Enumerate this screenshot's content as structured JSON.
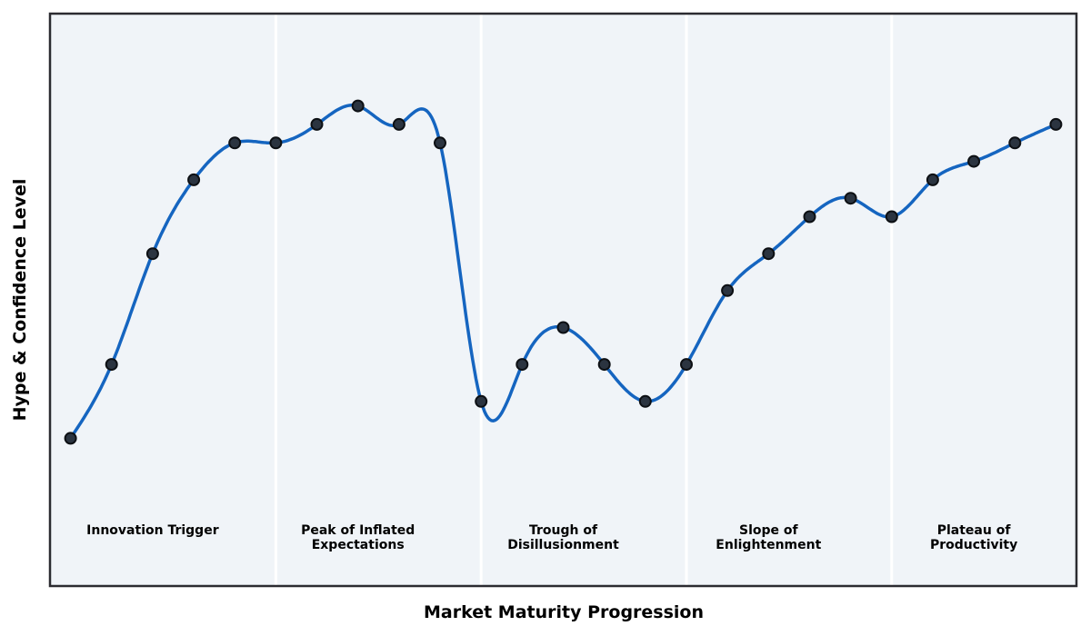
{
  "chart_data": {
    "type": "line",
    "title": "",
    "xlabel": "Market Maturity Progression",
    "ylabel": "Hype & Confidence Level",
    "x": [
      0,
      1,
      2,
      3,
      4,
      5,
      6,
      7,
      8,
      9,
      10,
      11,
      12,
      13,
      14,
      15,
      16,
      17,
      18,
      19,
      20,
      21,
      22,
      23,
      24
    ],
    "values": [
      5,
      25,
      55,
      75,
      85,
      85,
      90,
      95,
      90,
      85,
      15,
      25,
      35,
      25,
      15,
      25,
      45,
      55,
      65,
      70,
      65,
      75,
      80,
      85,
      90
    ],
    "xlim": [
      -0.5,
      24.5
    ],
    "ylim": [
      -35,
      120
    ],
    "smoothing": "cubic-spline",
    "grid": false,
    "axis_ticks": "none",
    "legend": "none",
    "phases": [
      {
        "label": "Innovation Trigger",
        "center_x": 2
      },
      {
        "label": "Peak of Inflated\nExpectations",
        "center_x": 7
      },
      {
        "label": "Trough of\nDisillusionment",
        "center_x": 12
      },
      {
        "label": "Slope of\nEnlightenment",
        "center_x": 17
      },
      {
        "label": "Plateau of\nProductivity",
        "center_x": 22
      }
    ],
    "phase_divider_x": [
      5,
      10,
      15,
      20
    ],
    "colors": {
      "line": "#1565c0",
      "marker_fill": "#2b3440",
      "marker_edge": "#0d1014",
      "plot_bg": "#f0f4f8",
      "frame": "#2b2b30",
      "divider": "#ffffff",
      "text": "#000000",
      "outer_bg": "#ffffff"
    }
  }
}
